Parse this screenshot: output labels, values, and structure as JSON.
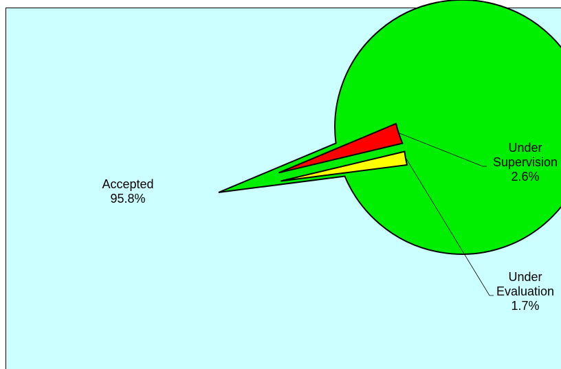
{
  "chart_data": {
    "type": "pie",
    "exploded": true,
    "slices": [
      {
        "label_lines": [
          "Accepted"
        ],
        "value": 95.8,
        "value_label": "95.8%",
        "color": "#00ee00"
      },
      {
        "label_lines": [
          "Under",
          "Supervision"
        ],
        "value": 2.6,
        "value_label": "2.6%",
        "color": "#ff0000"
      },
      {
        "label_lines": [
          "Under",
          "Evaluation"
        ],
        "value": 1.7,
        "value_label": "1.7%",
        "color": "#ffff00"
      }
    ]
  },
  "colors": {
    "background": "#ccffff",
    "outline": "#000000"
  }
}
